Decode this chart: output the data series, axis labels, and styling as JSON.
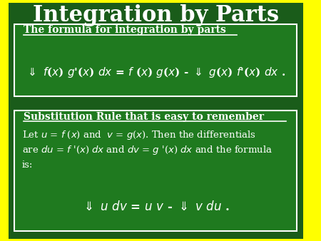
{
  "title": "Integration by Parts",
  "title_fontsize": 22,
  "title_color": "#FFFFFF",
  "background_color": "#1a5c1a",
  "box1_title": "The formula for integration by parts",
  "box2_title": "Substitution Rule that is easy to remember",
  "box_bg_color": "#1f7a1f",
  "box_border_color": "#FFFFFF",
  "text_color": "#FFFFFF",
  "yellow_border": "#FFFF00"
}
